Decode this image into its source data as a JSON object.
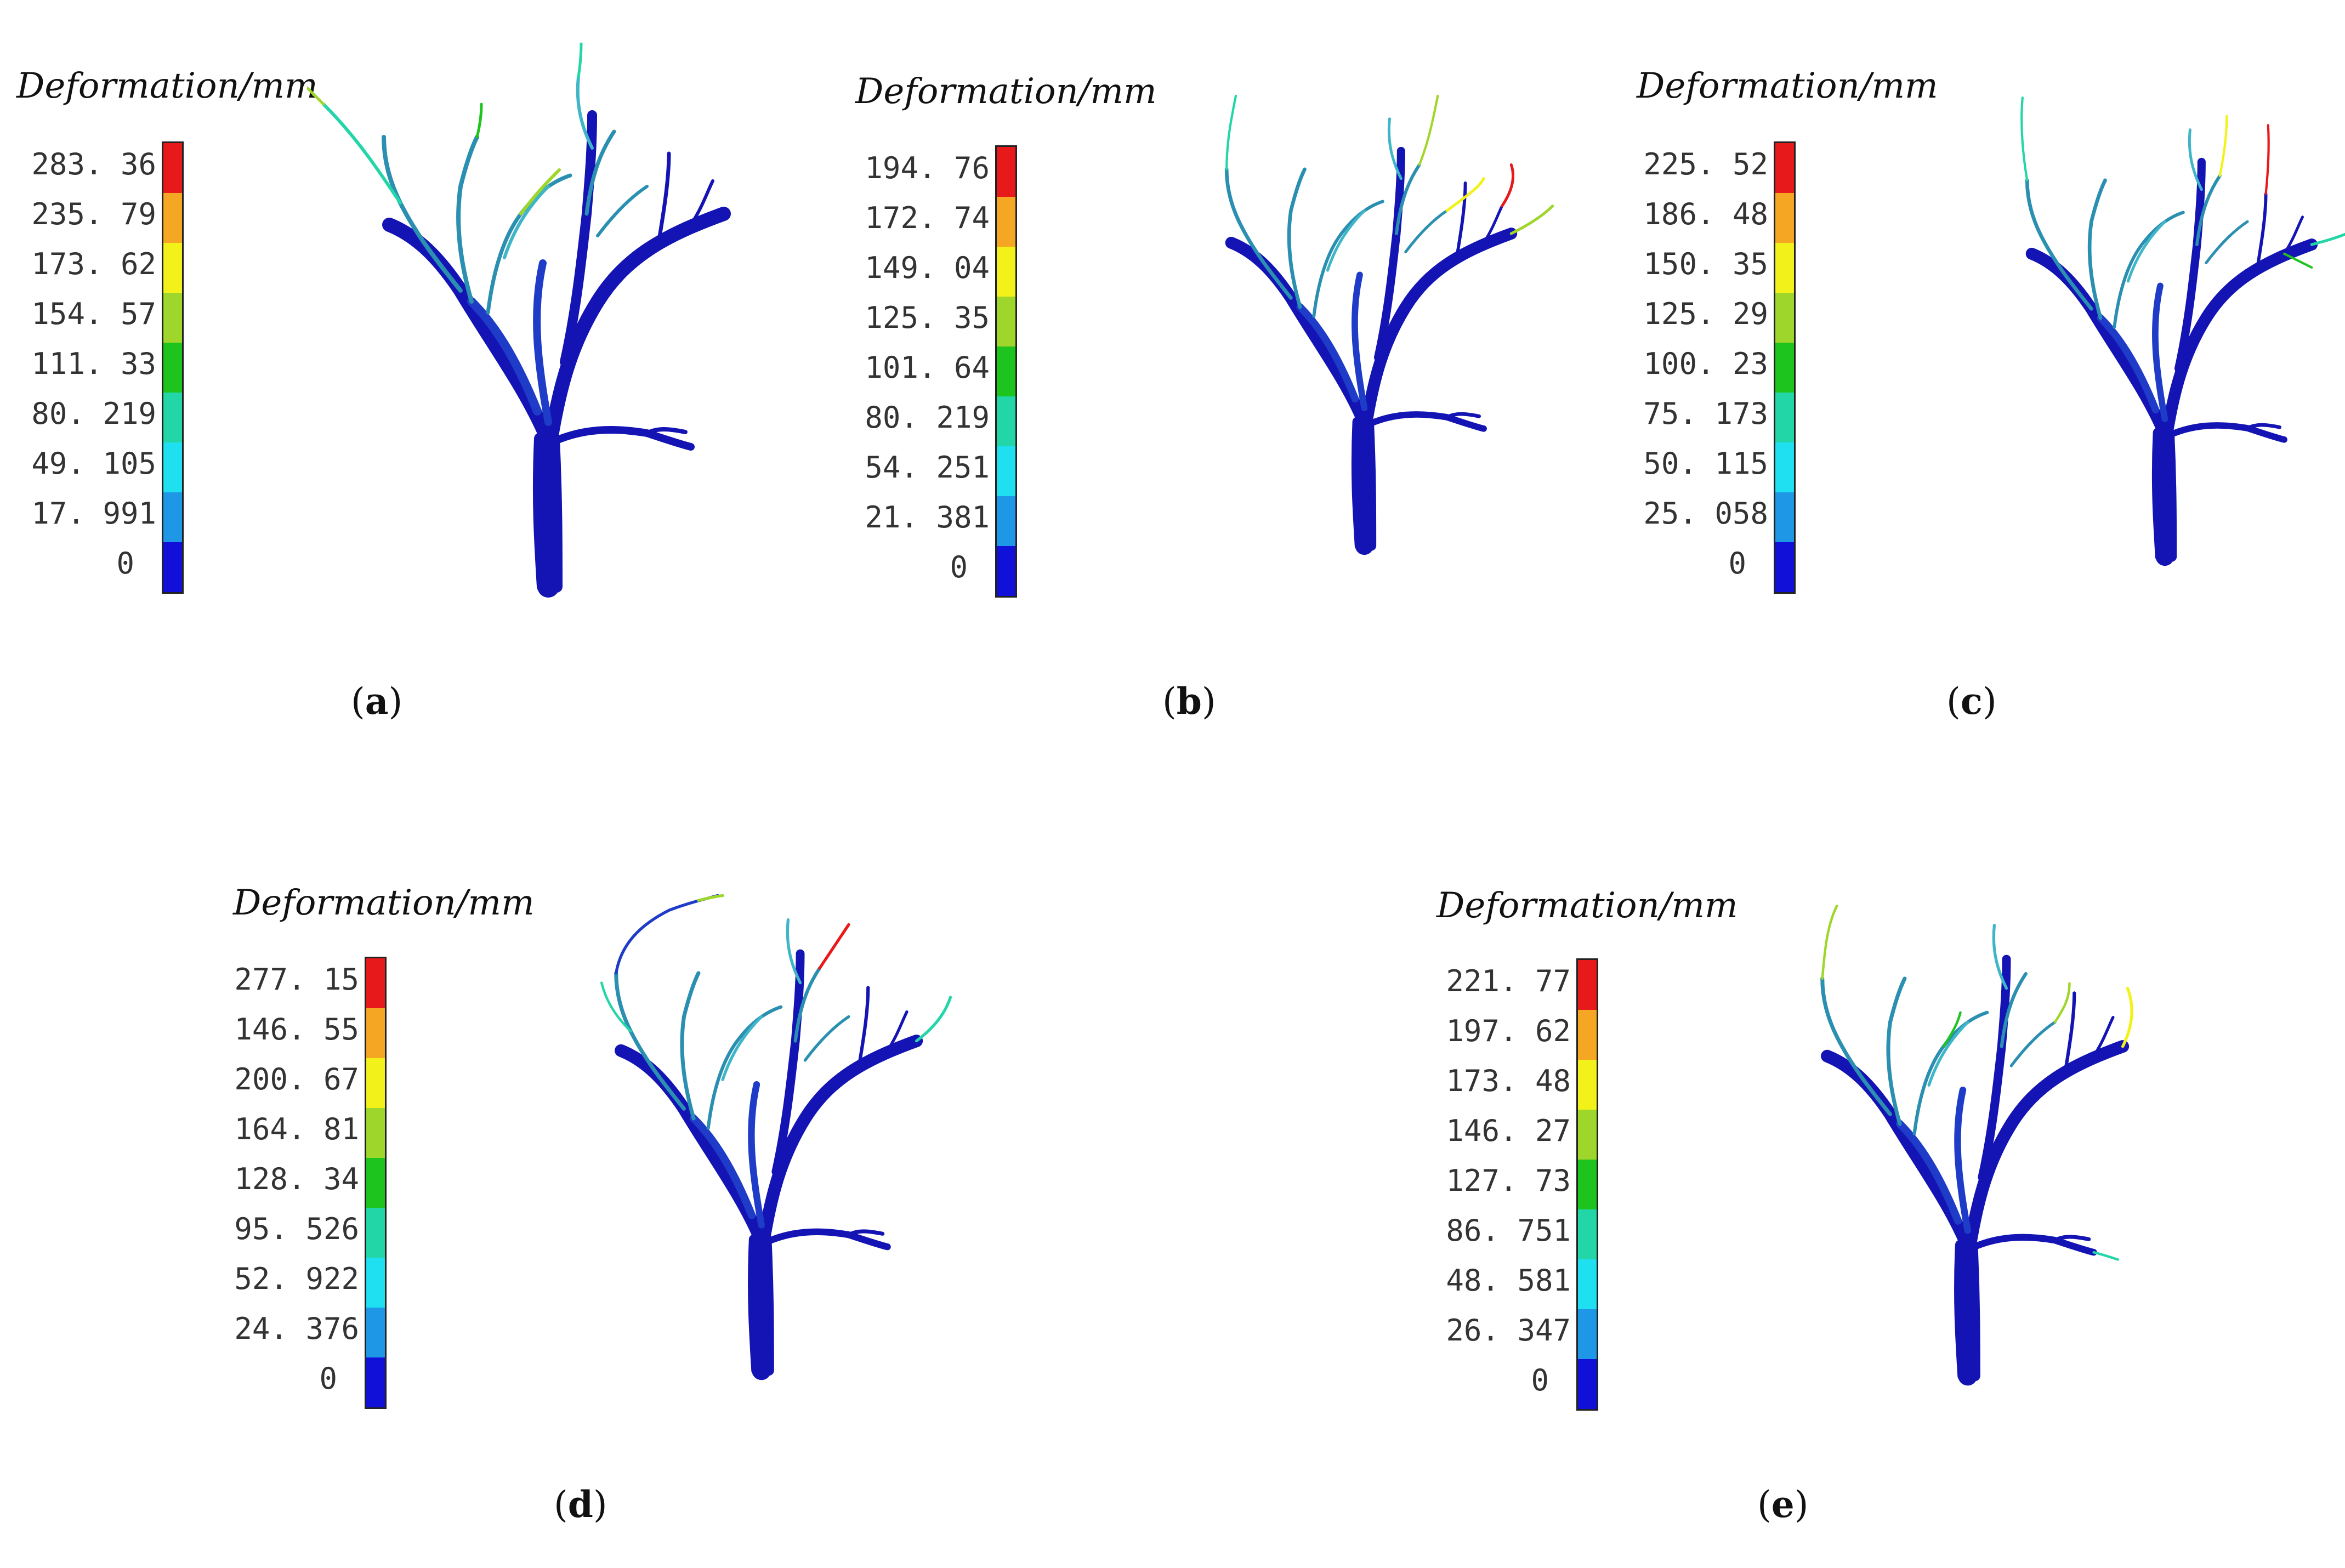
{
  "legend_title": "Deformation/mm",
  "colors": [
    "#e8191b",
    "#f5a623",
    "#f2f21a",
    "#9fd62b",
    "#1ec41e",
    "#22d6a8",
    "#1ee0f0",
    "#1e98e6",
    "#1010d8"
  ],
  "panels": [
    {
      "id": "a",
      "caption_letter": "a",
      "ticks": [
        "283. 36",
        "235. 79",
        "173. 62",
        "154. 57",
        "111. 33",
        "80. 219",
        "49. 105",
        "17. 991",
        "0"
      ]
    },
    {
      "id": "b",
      "caption_letter": "b",
      "ticks": [
        "194. 76",
        "172. 74",
        "149. 04",
        "125. 35",
        "101. 64",
        "80. 219",
        "54. 251",
        "21. 381",
        "0"
      ]
    },
    {
      "id": "c",
      "caption_letter": "c",
      "ticks": [
        "225. 52",
        "186. 48",
        "150. 35",
        "125. 29",
        "100. 23",
        "75. 173",
        "50. 115",
        "25. 058",
        "0"
      ]
    },
    {
      "id": "d",
      "caption_letter": "d",
      "ticks": [
        "277. 15",
        "146. 55",
        "200. 67",
        "164. 81",
        "128. 34",
        "95. 526",
        "52. 922",
        "24. 376",
        "0"
      ]
    },
    {
      "id": "e",
      "caption_letter": "e",
      "ticks": [
        "221. 77",
        "197. 62",
        "173. 48",
        "146. 27",
        "127. 73",
        "86. 751",
        "48. 581",
        "26. 347",
        "0"
      ]
    }
  ]
}
